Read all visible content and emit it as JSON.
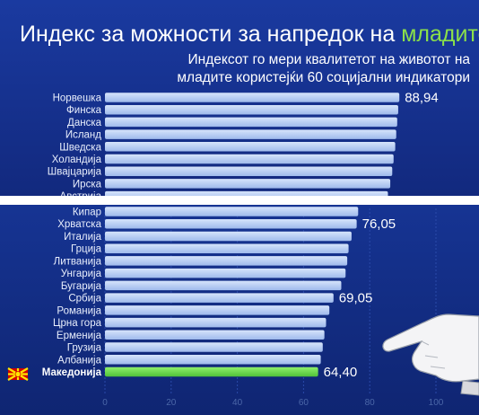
{
  "title_prefix": "Индекс за можности за напредок на ",
  "title_accent": "младите",
  "subtitle_line1": "Индексот го мери квалитетот на животот на",
  "subtitle_line2": "младите користејќи 60 социјални индикатори",
  "colors": {
    "background": "#132e8e",
    "bar": "#b9cff5",
    "bar_highlight": "#6cdc4a",
    "title_accent": "#8be04a",
    "gap": "#ffffff"
  },
  "chart_data": [
    {
      "type": "bar",
      "orientation": "horizontal",
      "panel": "top",
      "categories": [
        "Норвешка",
        "Финска",
        "Данска",
        "Исланд",
        "Шведска",
        "Холандија",
        "Швајцарија",
        "Ирска",
        "Австрија"
      ],
      "values": [
        88.94,
        88.6,
        88.3,
        88.0,
        87.7,
        87.2,
        86.8,
        86.2,
        85.5
      ],
      "data_labels": [
        {
          "index": 0,
          "text": "88,94"
        }
      ]
    },
    {
      "type": "bar",
      "orientation": "horizontal",
      "panel": "bottom",
      "categories": [
        "Кипар",
        "Хрватска",
        "Италија",
        "Грција",
        "Литванија",
        "Унгарија",
        "Бугарија",
        "Србија",
        "Романија",
        "Црна гора",
        "Ерменија",
        "Грузија",
        "Албанија",
        "Македонија"
      ],
      "values": [
        76.5,
        76.05,
        74.5,
        73.6,
        73.2,
        72.7,
        71.4,
        69.05,
        67.8,
        66.8,
        66.3,
        65.8,
        65.2,
        64.4
      ],
      "highlight": "Македонија",
      "data_labels": [
        {
          "index": 1,
          "text": "76,05"
        },
        {
          "index": 7,
          "text": "69,05"
        },
        {
          "index": 13,
          "text": "64,40"
        }
      ],
      "xlim": [
        0,
        100
      ],
      "xticks": [
        "0",
        "20",
        "40",
        "60",
        "80",
        "100"
      ]
    }
  ],
  "icons": [
    "flag-icon",
    "pointing-hand-icon"
  ]
}
